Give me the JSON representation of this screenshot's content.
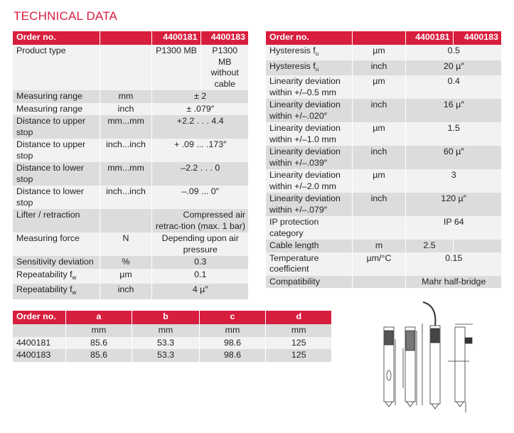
{
  "title": "TECHNICAL DATA",
  "table1": {
    "header": [
      "Order no.",
      "",
      "4400181",
      "4400183"
    ],
    "rows": [
      {
        "shade": "l",
        "label": "Product type",
        "unit": "",
        "values": [
          "P1300 MB",
          "P1300 MB without cable"
        ]
      },
      {
        "shade": "d",
        "label": "Measuring range",
        "unit": "mm",
        "value": "± 2"
      },
      {
        "shade": "l",
        "label": "Measuring range",
        "unit": "inch",
        "value": "± .079″"
      },
      {
        "shade": "d",
        "label": "Distance to upper stop",
        "unit": "mm...mm",
        "value": "+2.2 . . . 4.4"
      },
      {
        "shade": "l",
        "label": "Distance to upper stop",
        "unit": "inch...inch",
        "value": "+ .09 ... .173″"
      },
      {
        "shade": "d",
        "label": "Distance to lower stop",
        "unit": "mm...mm",
        "value": "–2.2 . . . 0"
      },
      {
        "shade": "l",
        "label": "Distance to lower stop",
        "unit": "inch...inch",
        "value": "–.09 ... 0″"
      },
      {
        "shade": "d",
        "label": "Lifter / retraction",
        "unit": "",
        "value": "Compressed air retrac-tion (max. 1 bar)",
        "align": "r"
      },
      {
        "shade": "l",
        "label": "Measuring force",
        "unit": "N",
        "value": "Depending upon air pressure"
      },
      {
        "shade": "d",
        "label": "Sensitivity deviation",
        "unit": "%",
        "value": "0.3"
      },
      {
        "shade": "l",
        "label": "Repeatability f",
        "sub": "w",
        "unit": "µm",
        "value": "0.1"
      },
      {
        "shade": "d",
        "label": "Repeatability f",
        "sub": "w",
        "unit": "inch",
        "value": "4 µ″"
      }
    ]
  },
  "table2": {
    "header": [
      "Order no.",
      "",
      "4400181",
      "4400183"
    ],
    "rows": [
      {
        "shade": "l",
        "label": "Hysteresis f",
        "sub": "u",
        "unit": "µm",
        "value": "0.5"
      },
      {
        "shade": "d",
        "label": "Hysteresis f",
        "sub": "u",
        "unit": "inch",
        "value": "20 µ″"
      },
      {
        "shade": "l",
        "label": "Linearity deviation within +/–0.5 mm",
        "unit": "µm",
        "value": "0.4"
      },
      {
        "shade": "d",
        "label": "Linearity deviation within +/–.020″",
        "unit": "inch",
        "value": "16 µ″"
      },
      {
        "shade": "l",
        "label": "Linearity deviation within +/–1.0 mm",
        "unit": "µm",
        "value": "1.5"
      },
      {
        "shade": "d",
        "label": "Linearity deviation within +/–.039″",
        "unit": "inch",
        "value": "60 µ″"
      },
      {
        "shade": "l",
        "label": "Linearity deviation within +/–2.0 mm",
        "unit": "µm",
        "value": "3"
      },
      {
        "shade": "d",
        "label": "Linearity deviation within +/–.079″",
        "unit": "inch",
        "value": "120 µ″"
      },
      {
        "shade": "l",
        "label": "IP protection category",
        "unit": "",
        "value": "IP 64"
      },
      {
        "shade": "d",
        "label": "Cable length",
        "unit": "m",
        "values": [
          "2.5",
          ""
        ]
      },
      {
        "shade": "l",
        "label": "Temperature coefficient",
        "unit": "µm/°C",
        "value": "0.15"
      },
      {
        "shade": "d",
        "label": "Compatibility",
        "unit": "",
        "value": "Mahr half-bridge"
      }
    ]
  },
  "table3": {
    "header": [
      "Order no.",
      "a",
      "b",
      "c",
      "d"
    ],
    "rows": [
      {
        "shade": "d",
        "cells": [
          "",
          "mm",
          "mm",
          "mm",
          "mm"
        ]
      },
      {
        "shade": "l",
        "cells": [
          "4400181",
          "85.6",
          "53.3",
          "98.6",
          "125"
        ]
      },
      {
        "shade": "d",
        "cells": [
          "4400183",
          "85.6",
          "53.3",
          "98.6",
          "125"
        ]
      }
    ]
  },
  "colors": {
    "accent": "#d81e3e",
    "row_light": "#f2f2f2",
    "row_dark": "#dcdcdc"
  }
}
